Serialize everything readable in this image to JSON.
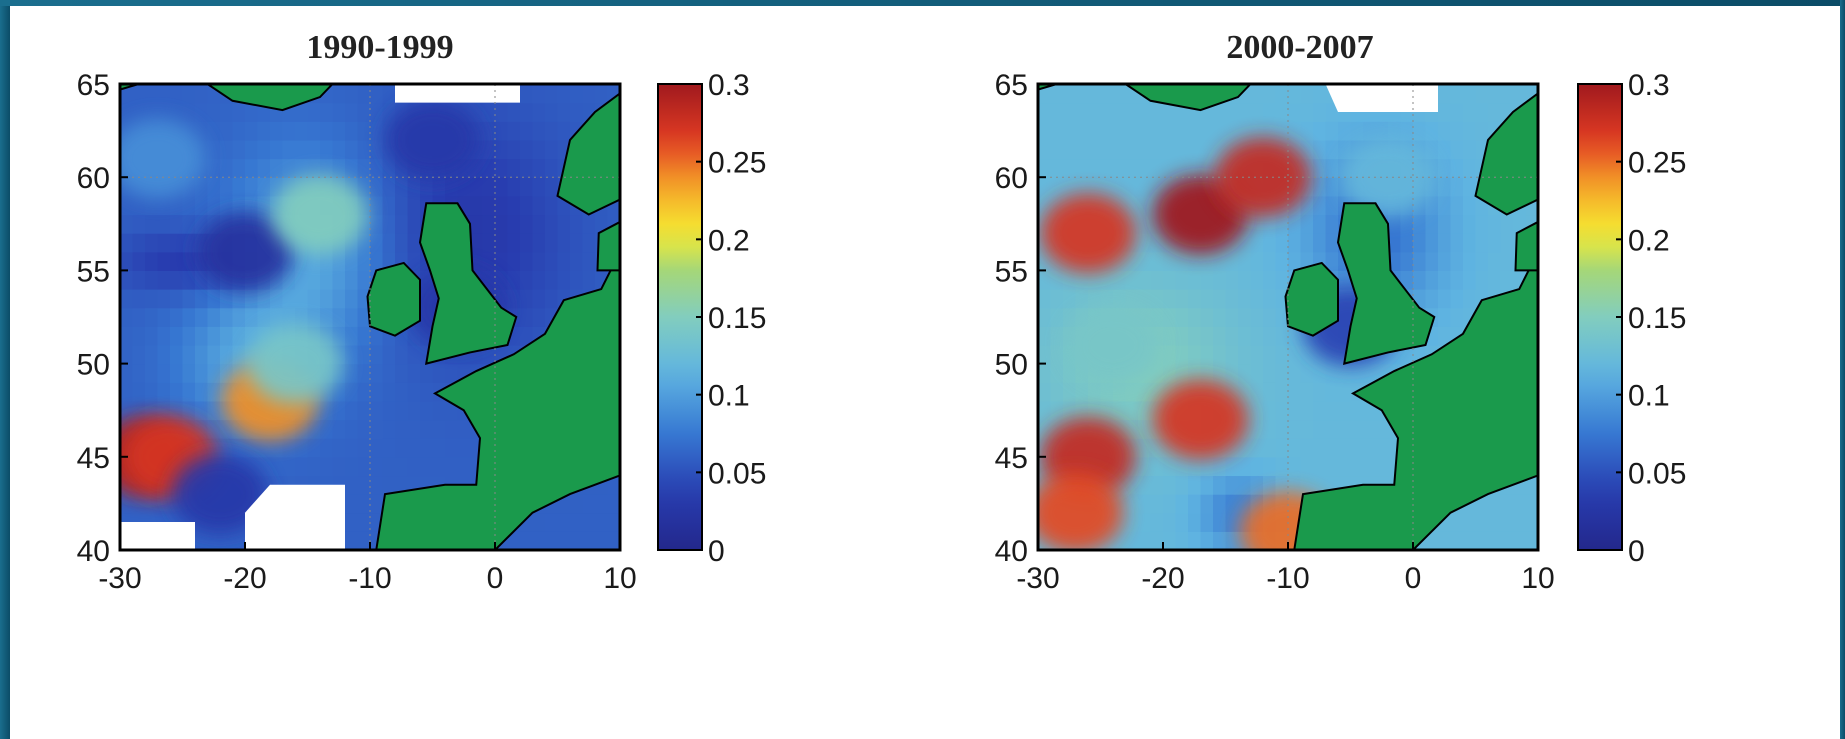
{
  "chart_data": [
    {
      "type": "heatmap",
      "title": "1990-1999",
      "x_ticks": [
        "-30",
        "-20",
        "-10",
        "0",
        "10"
      ],
      "y_ticks": [
        "65",
        "60",
        "55",
        "50",
        "45",
        "40"
      ],
      "xlim": [
        -30,
        10
      ],
      "ylim": [
        40,
        65
      ],
      "colorbar": {
        "range": [
          0,
          0.3
        ],
        "ticks": [
          "0.3",
          "0.25",
          "0.2",
          "0.15",
          "0.1",
          "0.05",
          "0"
        ]
      },
      "regions": [
        {
          "lon": -28,
          "lat": 45,
          "value": 0.29
        },
        {
          "lon": -26,
          "lat": 45,
          "value": 0.27
        },
        {
          "lon": -20,
          "lat": 56,
          "value": 0.02
        },
        {
          "lon": -27,
          "lat": 61,
          "value": 0.09
        },
        {
          "lon": -18,
          "lat": 48,
          "value": 0.24
        },
        {
          "lon": -16,
          "lat": 50,
          "value": 0.14
        },
        {
          "lon": -14,
          "lat": 58,
          "value": 0.15
        },
        {
          "lon": -5,
          "lat": 62,
          "value": 0.03
        },
        {
          "lon": -3,
          "lat": 53,
          "value": 0.03
        },
        {
          "lon": -22,
          "lat": 43,
          "value": 0.03
        }
      ],
      "grid": true
    },
    {
      "type": "heatmap",
      "title": "2000-2007",
      "x_ticks": [
        "-30",
        "-20",
        "-10",
        "0",
        "10"
      ],
      "y_ticks": [
        "65",
        "60",
        "55",
        "50",
        "45",
        "40"
      ],
      "xlim": [
        -30,
        10
      ],
      "ylim": [
        40,
        65
      ],
      "colorbar": {
        "range": [
          0,
          0.3
        ],
        "ticks": [
          "0.3",
          "0.25",
          "0.2",
          "0.15",
          "0.1",
          "0.05",
          "0"
        ]
      },
      "regions": [
        {
          "lon": -17,
          "lat": 58,
          "value": 0.3
        },
        {
          "lon": -12,
          "lat": 60,
          "value": 0.28
        },
        {
          "lon": -26,
          "lat": 57,
          "value": 0.27
        },
        {
          "lon": -26,
          "lat": 45,
          "value": 0.28
        },
        {
          "lon": -17,
          "lat": 47,
          "value": 0.27
        },
        {
          "lon": -27,
          "lat": 42,
          "value": 0.26
        },
        {
          "lon": -10,
          "lat": 41,
          "value": 0.25
        },
        {
          "lon": -24,
          "lat": 51,
          "value": 0.14
        },
        {
          "lon": -5,
          "lat": 52,
          "value": 0.04
        },
        {
          "lon": -2,
          "lat": 60,
          "value": 0.12
        }
      ],
      "grid": true
    }
  ]
}
